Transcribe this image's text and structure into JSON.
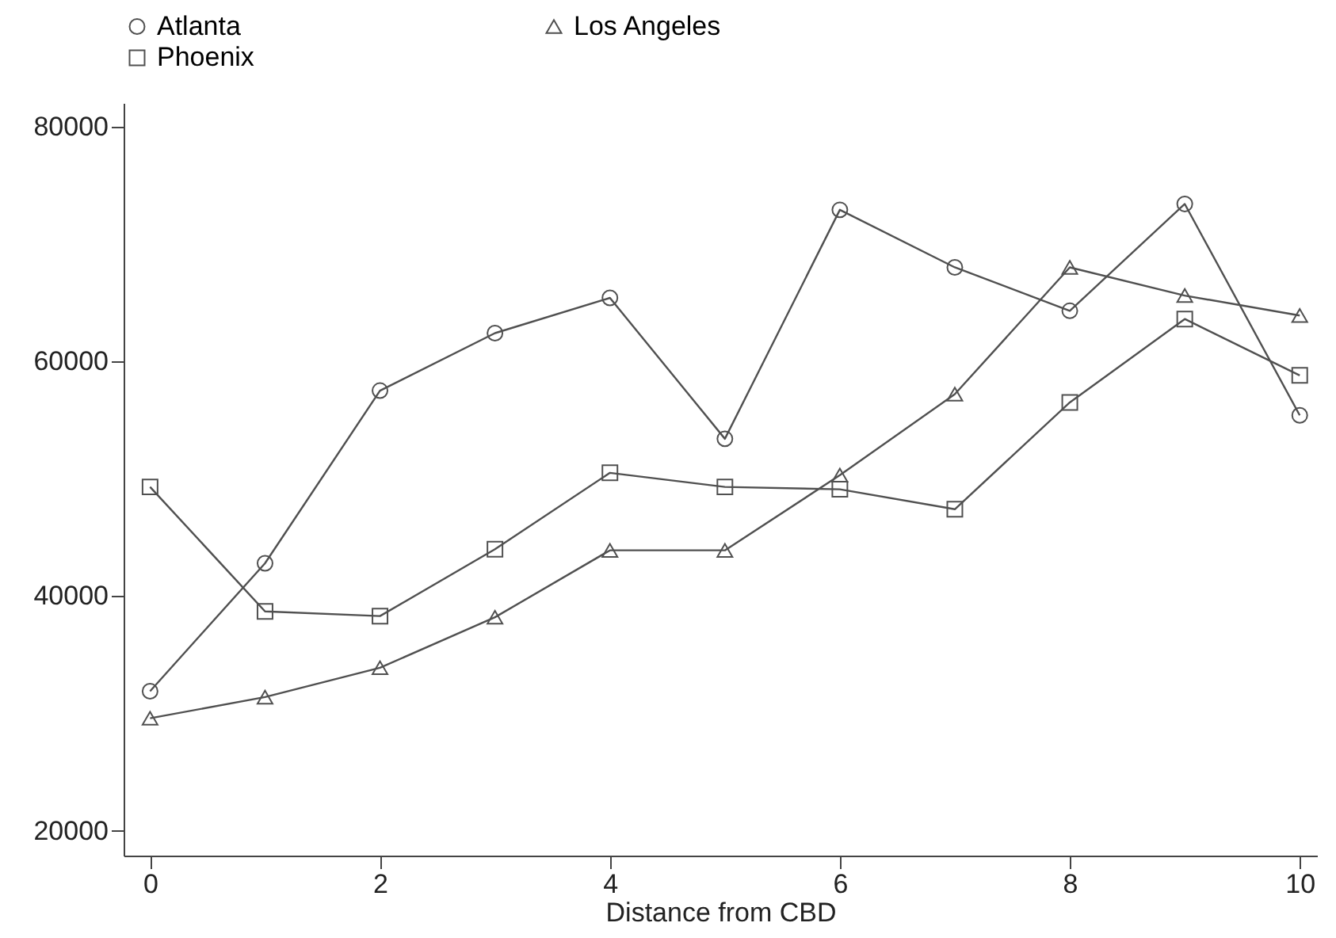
{
  "chart_data": {
    "type": "line",
    "xlabel": "Distance from CBD",
    "x": [
      0,
      1,
      2,
      3,
      4,
      5,
      6,
      7,
      8,
      9,
      10
    ],
    "xlim": [
      -0.23,
      10.15
    ],
    "xticks": [
      0,
      2,
      4,
      6,
      8,
      10
    ],
    "ylim": [
      17900,
      82000
    ],
    "yticks": [
      20000,
      40000,
      60000,
      80000
    ],
    "grid": false,
    "legend": "top",
    "series": [
      {
        "name": "Atlanta",
        "color": "#505050",
        "marker": "circle",
        "values": [
          31900,
          42800,
          57500,
          62400,
          65400,
          53400,
          72900,
          68000,
          64300,
          73400,
          55400
        ]
      },
      {
        "name": "Los Angeles",
        "color": "#505050",
        "marker": "triangle",
        "values": [
          29600,
          31400,
          33900,
          38200,
          43900,
          43900,
          50300,
          57200,
          68000,
          65600,
          63900
        ]
      },
      {
        "name": "Phoenix",
        "color": "#505050",
        "marker": "square",
        "values": [
          49300,
          38700,
          38300,
          44000,
          50500,
          49300,
          49100,
          47400,
          56500,
          63600,
          58800
        ]
      }
    ]
  }
}
